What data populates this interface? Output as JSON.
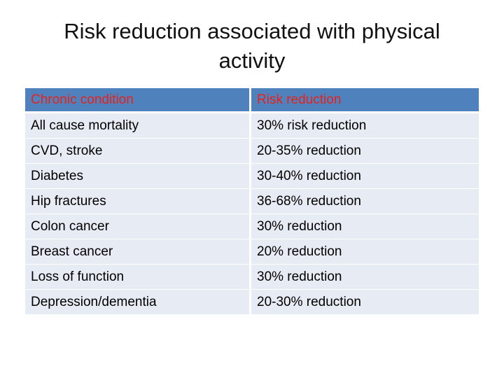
{
  "slide": {
    "title_line1": "Risk reduction associated with physical",
    "title_line2": "activity"
  },
  "table": {
    "headers": {
      "condition": "Chronic condition",
      "risk": "Risk reduction"
    },
    "rows": [
      {
        "condition": "All cause mortality",
        "risk": "30% risk reduction"
      },
      {
        "condition": "CVD, stroke",
        "risk": "20-35% reduction"
      },
      {
        "condition": "Diabetes",
        "risk": "30-40% reduction"
      },
      {
        "condition": "Hip fractures",
        "risk": "36-68% reduction"
      },
      {
        "condition": "Colon cancer",
        "risk": "30% reduction"
      },
      {
        "condition": "Breast cancer",
        "risk": "20% reduction"
      },
      {
        "condition": "Loss of function",
        "risk": "30% reduction"
      },
      {
        "condition": "Depression/dementia",
        "risk": "20-30% reduction"
      }
    ]
  },
  "colors": {
    "header_fill": "#4f81bd",
    "header_text": "#e8211c",
    "row_fill": "#e7ebf4"
  }
}
